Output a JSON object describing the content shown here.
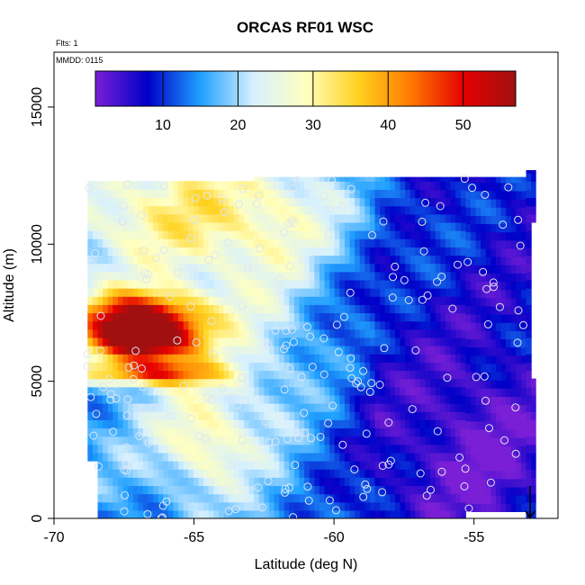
{
  "chart_data": {
    "type": "heatmap",
    "title": "ORCAS RF01 WSC",
    "annotations": [
      "Flts: 1",
      "MMDD: 0115"
    ],
    "xlabel": "Latitude (deg N)",
    "ylabel": "Altitude (m)",
    "xlim": [
      -70,
      -52
    ],
    "ylim": [
      0,
      17000
    ],
    "x_ticks": [
      -70,
      -65,
      -60,
      -55
    ],
    "x_tick_labels": [
      "-70",
      "-65",
      "-60",
      "-55"
    ],
    "y_ticks": [
      0,
      5000,
      10000,
      15000
    ],
    "y_tick_labels": [
      "0",
      "5000",
      "10000",
      "15000"
    ],
    "colorbar": {
      "min": 1,
      "max": 57,
      "ticks": [
        10,
        20,
        30,
        40,
        50
      ],
      "tick_labels": [
        "10",
        "20",
        "30",
        "40",
        "50"
      ],
      "colors": [
        "#7a1fd6",
        "#0000c8",
        "#1fa0ff",
        "#d6f0ff",
        "#ffffc0",
        "#ffd21f",
        "#ff7a00",
        "#e60000",
        "#a01010"
      ]
    },
    "grid": false,
    "legend": "none",
    "data_extent": {
      "lat": [
        -68.8,
        -52.8
      ],
      "alt": [
        0,
        12600
      ]
    },
    "field_summary": [
      {
        "alt_range": [
          10000,
          12500
        ],
        "lat_range": [
          -68.8,
          -60
        ],
        "value_range": [
          25,
          34
        ]
      },
      {
        "alt_range": [
          6000,
          8500
        ],
        "lat_range": [
          -68.5,
          -64.5
        ],
        "value_range": [
          38,
          57
        ]
      },
      {
        "alt_range": [
          0,
          9000
        ],
        "lat_range": [
          -61,
          -52.8
        ],
        "value_range": [
          3,
          12
        ]
      }
    ],
    "markers": "flight-track sample points (open circles)"
  }
}
